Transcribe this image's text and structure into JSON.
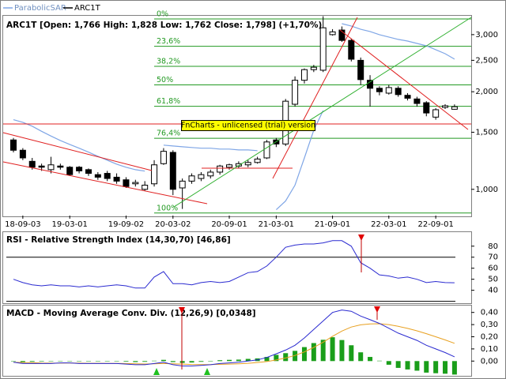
{
  "chart_data": [
    {
      "type": "candlestick",
      "title": "ARC1T [Open: 1,766  High: 1,828  Low: 1,762  Close: 1,798] (+1,70%)",
      "name": "ARC1T",
      "color": "#000000",
      "categories": [
        null,
        "18-09-03",
        null,
        null,
        null,
        null,
        "19-03-01",
        null,
        null,
        null,
        null,
        null,
        "19-09-02",
        null,
        null,
        null,
        null,
        "20-03-02",
        null,
        null,
        null,
        null,
        null,
        "20-09-01",
        null,
        null,
        null,
        null,
        "21-03-01",
        null,
        null,
        null,
        null,
        null,
        "21-09-01",
        null,
        null,
        null,
        null,
        null,
        "22-03-01",
        null,
        null,
        null,
        null,
        "22-09-01",
        null,
        null
      ],
      "open": [
        1420,
        1320,
        1220,
        1180,
        1150,
        1180,
        1170,
        1170,
        1150,
        1110,
        1120,
        1090,
        1070,
        1040,
        1000,
        1040,
        1200,
        1300,
        1010,
        1060,
        1080,
        1100,
        1130,
        1170,
        1180,
        1190,
        1210,
        1250,
        1420,
        1380,
        1830,
        2170,
        2340,
        2330,
        3000,
        3100,
        2880,
        2500,
        2170,
        2050,
        1980,
        2050,
        1950,
        1900,
        1850,
        1670,
        1790,
        1766
      ],
      "high": [
        1440,
        1340,
        1250,
        1200,
        1260,
        1200,
        1180,
        1180,
        1160,
        1130,
        1140,
        1120,
        1090,
        1070,
        1060,
        1230,
        1340,
        1320,
        1080,
        1120,
        1130,
        1150,
        1190,
        1200,
        1220,
        1230,
        1260,
        1420,
        1440,
        1900,
        2230,
        2360,
        2420,
        3420,
        3120,
        3180,
        2920,
        2550,
        2250,
        2080,
        2100,
        2080,
        1980,
        1930,
        1870,
        1780,
        1830,
        1828
      ],
      "low": [
        1300,
        1230,
        1150,
        1140,
        1120,
        1150,
        1100,
        1120,
        1100,
        1070,
        1060,
        1040,
        1010,
        1020,
        990,
        1020,
        1190,
        960,
        870,
        1040,
        1060,
        1080,
        1110,
        1150,
        1160,
        1170,
        1200,
        1240,
        1350,
        1360,
        1800,
        2120,
        2300,
        2300,
        2980,
        2850,
        2480,
        2100,
        1800,
        1950,
        1960,
        1930,
        1880,
        1800,
        1680,
        1640,
        1770,
        1762
      ],
      "close": [
        1320,
        1250,
        1170,
        1170,
        1190,
        1170,
        1110,
        1140,
        1120,
        1090,
        1080,
        1060,
        1020,
        1050,
        1030,
        1190,
        1310,
        1000,
        1060,
        1100,
        1110,
        1130,
        1180,
        1190,
        1200,
        1210,
        1240,
        1400,
        1380,
        1870,
        2170,
        2340,
        2380,
        3150,
        3060,
        2880,
        2520,
        2180,
        2050,
        2000,
        2060,
        1960,
        1910,
        1840,
        1720,
        1760,
        1810,
        1798
      ],
      "series": [
        {
          "name": "ParabolicSAR",
          "color": "#7fa6e6",
          "values": [
            1640,
            1610,
            1566,
            1510,
            1460,
            1415,
            1376,
            1339,
            1302,
            1265,
            1230,
            1196,
            1170,
            1150,
            1138,
            null,
            1369,
            1360,
            1353,
            1346,
            1339,
            1339,
            1331,
            1331,
            1323,
            1323,
            1316,
            null,
            865,
            920,
            1030,
            1250,
            1520,
            1750,
            null,
            3243,
            3190,
            3117,
            3067,
            3000,
            2949,
            2900,
            2867,
            2819,
            2772,
            2696,
            2621,
            2521
          ]
        }
      ],
      "fibonacci": [
        {
          "value": 3354,
          "label": "0%"
        },
        {
          "value": 2762,
          "label": "23,6%"
        },
        {
          "value": 2396,
          "label": "38,2%"
        },
        {
          "value": 2100,
          "label": "50%"
        },
        {
          "value": 1803,
          "label": "61,8%"
        },
        {
          "value": 1437,
          "label": "76,4%"
        },
        {
          "value": 845,
          "label": "100%"
        }
      ],
      "fib_color": "#229922",
      "ylim": [
        830,
        3430
      ],
      "log_scale": true,
      "yticks": [
        {
          "value": 1000,
          "label": "1,000"
        },
        {
          "value": 1500,
          "label": "1,500"
        },
        {
          "value": 2000,
          "label": "2,000"
        },
        {
          "value": 2500,
          "label": "2,500"
        },
        {
          "value": 3000,
          "label": "3,000"
        }
      ],
      "annotation": "FnCharts - unlicensed (trial) version"
    },
    {
      "type": "line",
      "title": "RSI - Relative Strength Index (14,30,70) [46,86]",
      "series": [
        {
          "color": "#2a2ad0",
          "values": [
            50,
            47,
            45,
            44,
            45,
            44,
            44,
            43,
            44,
            43,
            44,
            45,
            44,
            42,
            42,
            52,
            57,
            46,
            46,
            45,
            47,
            48,
            47,
            48,
            52,
            56,
            57,
            62,
            70,
            79,
            81,
            82,
            82,
            83,
            85,
            85,
            80,
            65,
            60,
            54,
            53,
            51,
            52,
            50,
            47,
            48,
            47,
            46.86
          ]
        }
      ],
      "levels": [
        30,
        70
      ],
      "ylim": [
        29,
        92
      ],
      "yticks": [
        40,
        50,
        60,
        70,
        80
      ]
    },
    {
      "type": "macd",
      "title": "MACD - Moving Average Conv. Div. (12,26,9) [0,0348]",
      "series": [
        {
          "style": "bar",
          "color": "#1a9e1a",
          "values": [
            0,
            -0.008,
            -0.006,
            -0.004,
            -0.003,
            0.002,
            0.001,
            -0.003,
            -0.002,
            -0.002,
            -0.001,
            -0.001,
            -0.005,
            -0.008,
            -0.006,
            0.003,
            0.01,
            -0.008,
            -0.015,
            -0.012,
            -0.006,
            -0.001,
            0.007,
            0.01,
            0.012,
            0.018,
            0.022,
            0.034,
            0.051,
            0.065,
            0.084,
            0.115,
            0.148,
            0.175,
            0.196,
            0.173,
            0.13,
            0.072,
            0.034,
            0.003,
            -0.03,
            -0.056,
            -0.069,
            -0.079,
            -0.095,
            -0.1,
            -0.104,
            -0.111
          ]
        },
        {
          "style": "line",
          "color": "#e8a020",
          "values": [
            -0.01,
            -0.012,
            -0.014,
            -0.016,
            -0.017,
            -0.017,
            -0.016,
            -0.017,
            -0.018,
            -0.018,
            -0.019,
            -0.019,
            -0.02,
            -0.022,
            -0.024,
            -0.023,
            -0.02,
            -0.022,
            -0.025,
            -0.028,
            -0.029,
            -0.029,
            -0.027,
            -0.025,
            -0.022,
            -0.018,
            -0.012,
            -0.004,
            0.009,
            0.025,
            0.046,
            0.075,
            0.112,
            0.155,
            0.204,
            0.247,
            0.28,
            0.298,
            0.306,
            0.307,
            0.3,
            0.286,
            0.269,
            0.249,
            0.225,
            0.2,
            0.174,
            0.146
          ]
        },
        {
          "style": "line",
          "color": "#2a2ad0",
          "values": [
            -0.01,
            -0.02,
            -0.02,
            -0.02,
            -0.02,
            -0.015,
            -0.015,
            -0.02,
            -0.02,
            -0.02,
            -0.02,
            -0.02,
            -0.025,
            -0.03,
            -0.03,
            -0.02,
            -0.01,
            -0.03,
            -0.04,
            -0.04,
            -0.035,
            -0.03,
            -0.02,
            -0.015,
            -0.01,
            0,
            0.01,
            0.03,
            0.06,
            0.09,
            0.13,
            0.19,
            0.26,
            0.33,
            0.4,
            0.42,
            0.41,
            0.37,
            0.34,
            0.31,
            0.27,
            0.23,
            0.2,
            0.17,
            0.13,
            0.1,
            0.07,
            0.0348
          ]
        }
      ],
      "ylim": [
        -0.115,
        0.45
      ],
      "yticks": [
        {
          "value": 0,
          "label": "0,00"
        },
        {
          "value": 0.1,
          "label": "0,10"
        },
        {
          "value": 0.2,
          "label": "0,20"
        },
        {
          "value": 0.3,
          "label": "0,30"
        },
        {
          "value": 0.4,
          "label": "0,40"
        }
      ]
    }
  ]
}
